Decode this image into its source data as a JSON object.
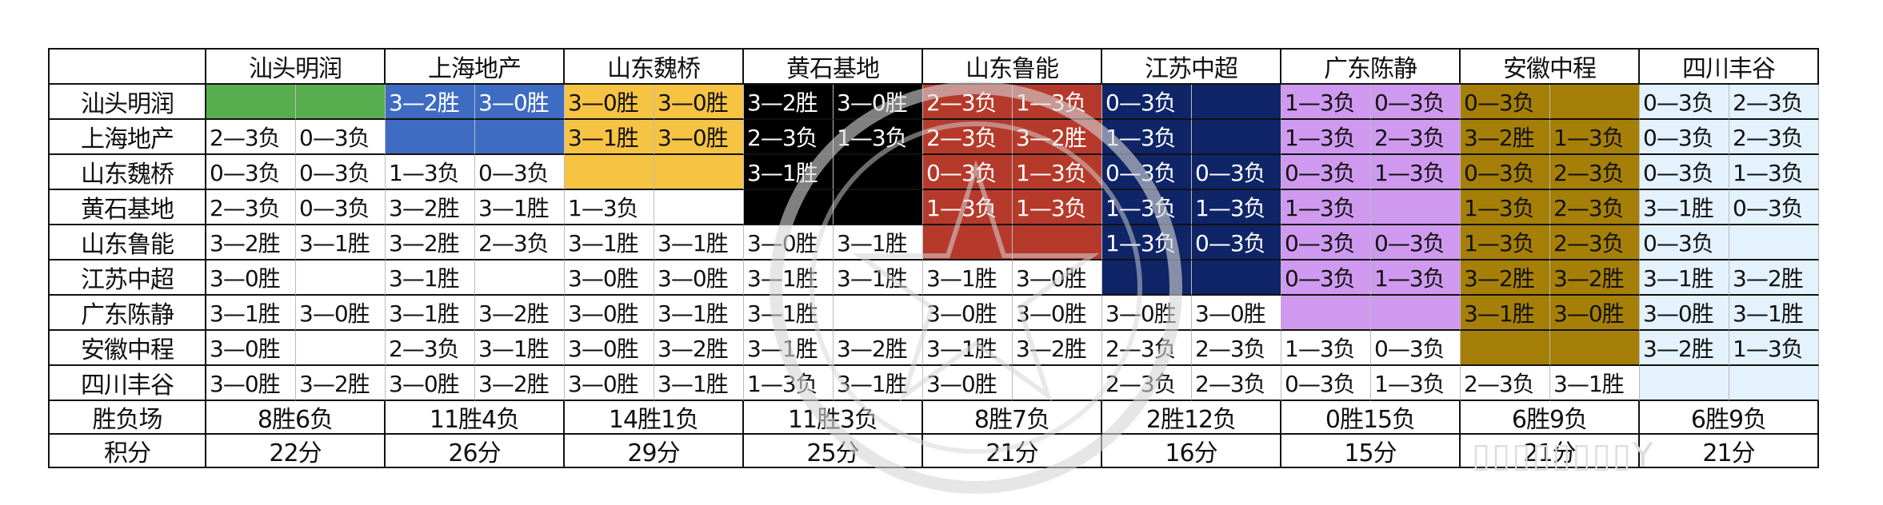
{
  "table": {
    "corner": "",
    "teams": [
      "汕头明润",
      "上海地产",
      "山东魏桥",
      "黄石基地",
      "山东鲁能",
      "江苏中超",
      "广东陈静",
      "安徽中程",
      "四川丰谷"
    ],
    "team_colors": [
      "#58ad4f",
      "#3e6cc2",
      "#f6c343",
      "#000000",
      "#b63a2b",
      "#0f2568",
      "#cf99f0",
      "#a57f08",
      "#e3f2fd"
    ],
    "rows": [
      [
        "",
        "",
        "3—2胜",
        "3—0胜",
        "3—0胜",
        "3—0胜",
        "3—2胜",
        "3—0胜",
        "2—3负",
        "1—3负",
        "0—3负",
        "",
        "1—3负",
        "0—3负",
        "0—3负",
        "",
        "0—3负",
        "2—3负"
      ],
      [
        "2—3负",
        "0—3负",
        "",
        "",
        "3—1胜",
        "3—0胜",
        "2—3负",
        "1—3负",
        "2—3负",
        "3—2胜",
        "1—3负",
        "",
        "1—3负",
        "2—3负",
        "3—2胜",
        "1—3负",
        "0—3负",
        "2—3负"
      ],
      [
        "0—3负",
        "0—3负",
        "1—3负",
        "0—3负",
        "",
        "",
        "3—1胜",
        "",
        "0—3负",
        "1—3负",
        "0—3负",
        "0—3负",
        "0—3负",
        "1—3负",
        "0—3负",
        "2—3负",
        "0—3负",
        "1—3负"
      ],
      [
        "2—3负",
        "0—3负",
        "3—2胜",
        "3—1胜",
        "1—3负",
        "",
        "",
        "",
        "1—3负",
        "1—3负",
        "1—3负",
        "1—3负",
        "1—3负",
        "",
        "1—3负",
        "2—3负",
        "3—1胜",
        "0—3负"
      ],
      [
        "3—2胜",
        "3—1胜",
        "3—2胜",
        "2—3负",
        "3—1胜",
        "3—1胜",
        "3—0胜",
        "3—1胜",
        "",
        "",
        "1—3负",
        "0—3负",
        "0—3负",
        "0—3负",
        "1—3负",
        "2—3负",
        "0—3负",
        ""
      ],
      [
        "3—0胜",
        "",
        "3—1胜",
        "",
        "3—0胜",
        "3—0胜",
        "3—1胜",
        "3—1胜",
        "3—1胜",
        "3—0胜",
        "",
        "",
        "0—3负",
        "1—3负",
        "3—2胜",
        "3—2胜",
        "3—1胜",
        "3—2胜"
      ],
      [
        "3—1胜",
        "3—0胜",
        "3—1胜",
        "3—2胜",
        "3—0胜",
        "3—1胜",
        "3—1胜",
        "",
        "3—0胜",
        "3—0胜",
        "3—0胜",
        "3—0胜",
        "",
        "",
        "3—1胜",
        "3—0胜",
        "3—0胜",
        "3—1胜"
      ],
      [
        "3—0胜",
        "",
        "2—3负",
        "3—1胜",
        "3—0胜",
        "3—2胜",
        "3—1胜",
        "3—2胜",
        "3—1胜",
        "3—2胜",
        "2—3负",
        "2—3负",
        "1—3负",
        "0—3负",
        "",
        "",
        "3—2胜",
        "1—3负"
      ],
      [
        "3—0胜",
        "3—2胜",
        "3—0胜",
        "3—2胜",
        "3—0胜",
        "3—1胜",
        "1—3负",
        "3—1胜",
        "3—0胜",
        "",
        "2—3负",
        "2—3负",
        "0—3负",
        "1—3负",
        "2—3负",
        "3—1胜",
        "",
        ""
      ]
    ],
    "record_label": "胜负场",
    "records": [
      "8胜6负",
      "11胜4负",
      "14胜1负",
      "11胜3负",
      "8胜7负",
      "2胜12负",
      "0胜15负",
      "6胜9负",
      "6胜9负"
    ],
    "points_label": "积分",
    "points": [
      "22分",
      "26分",
      "29分",
      "25分",
      "21分",
      "16分",
      "15分",
      "21分",
      "21分"
    ]
  }
}
